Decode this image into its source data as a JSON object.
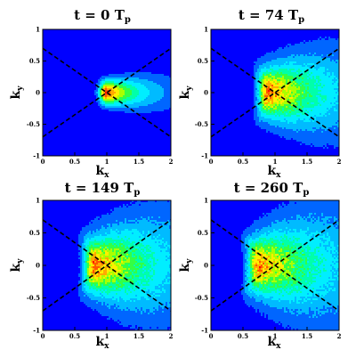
{
  "chart_data": [
    {
      "type": "heatmap",
      "title": {
        "main": "t = 0 T",
        "sub": "p"
      },
      "xlabel": {
        "main": "k",
        "sub": "x"
      },
      "ylabel": {
        "main": "k",
        "sub": "y"
      },
      "xlim": [
        0,
        2
      ],
      "ylim": [
        -1,
        1
      ],
      "xticks": [
        "0",
        "0.5",
        "1",
        "1.5",
        "2"
      ],
      "yticks": [
        "-1",
        "-0.5",
        "0",
        "0.5",
        "1"
      ],
      "peak_kx": 1.0,
      "angular_spread": 0.18,
      "spectral_broadening": 0.0,
      "noise_level": 0.0,
      "dashed_lines": [
        {
          "from": [
            0,
            0.7
          ],
          "to": [
            2,
            -0.7
          ]
        },
        {
          "from": [
            0,
            -0.7
          ],
          "to": [
            2,
            0.7
          ]
        }
      ],
      "grid": false
    },
    {
      "type": "heatmap",
      "title": {
        "main": "t = 74 T",
        "sub": "p"
      },
      "xlabel": {
        "main": "k",
        "sub": "x"
      },
      "ylabel": {
        "main": "k",
        "sub": "y"
      },
      "xlim": [
        0,
        2
      ],
      "ylim": [
        -1,
        1
      ],
      "xticks": [
        "0",
        "0.5",
        "1",
        "1.5",
        "2"
      ],
      "yticks": [
        "-1",
        "-0.5",
        "0",
        "0.5",
        "1"
      ],
      "peak_kx": 0.9,
      "angular_spread": 0.42,
      "spectral_broadening": 0.35,
      "noise_level": 0.12,
      "dashed_lines": [
        {
          "from": [
            0,
            0.7
          ],
          "to": [
            2,
            -0.7
          ]
        },
        {
          "from": [
            0,
            -0.7
          ],
          "to": [
            2,
            0.7
          ]
        }
      ],
      "grid": false
    },
    {
      "type": "heatmap",
      "title": {
        "main": "t = 149 T",
        "sub": "p"
      },
      "xlabel": {
        "main": "k",
        "sub": "x"
      },
      "ylabel": {
        "main": "k",
        "sub": "y"
      },
      "xlim": [
        0,
        2
      ],
      "ylim": [
        -1,
        1
      ],
      "xticks": [
        "0",
        "0.5",
        "1",
        "1.5",
        "2"
      ],
      "yticks": [
        "-1",
        "-0.5",
        "0",
        "0.5",
        "1"
      ],
      "peak_kx": 0.82,
      "angular_spread": 0.5,
      "spectral_broadening": 0.45,
      "noise_level": 0.14,
      "dashed_lines": [
        {
          "from": [
            0,
            0.7
          ],
          "to": [
            2,
            -0.7
          ]
        },
        {
          "from": [
            0,
            -0.7
          ],
          "to": [
            2,
            0.7
          ]
        }
      ],
      "grid": false
    },
    {
      "type": "heatmap",
      "title": {
        "main": "t = 260 T",
        "sub": "p"
      },
      "xlabel": {
        "main": "k",
        "sub": "x"
      },
      "ylabel": {
        "main": "k",
        "sub": "y"
      },
      "xlim": [
        0,
        2
      ],
      "ylim": [
        -1,
        1
      ],
      "xticks": [
        "0",
        "0.5",
        "1",
        "1.5",
        "2"
      ],
      "yticks": [
        "-1",
        "-0.5",
        "0",
        "0.5",
        "1"
      ],
      "peak_kx": 0.75,
      "angular_spread": 0.55,
      "spectral_broadening": 0.5,
      "noise_level": 0.15,
      "dashed_lines": [
        {
          "from": [
            0,
            0.7
          ],
          "to": [
            2,
            -0.7
          ]
        },
        {
          "from": [
            0,
            -0.7
          ],
          "to": [
            2,
            0.7
          ]
        }
      ],
      "grid": false
    }
  ],
  "colors": {
    "background_level": "#0000ff",
    "colormap": [
      "#0000ff",
      "#0066ff",
      "#00bbff",
      "#00eeff",
      "#00ffaa",
      "#33ff44",
      "#aaff00",
      "#ffee00",
      "#ffaa00",
      "#ff5500",
      "#ff0000"
    ],
    "contour_line": "#000000",
    "dashed_line": "#000000"
  }
}
